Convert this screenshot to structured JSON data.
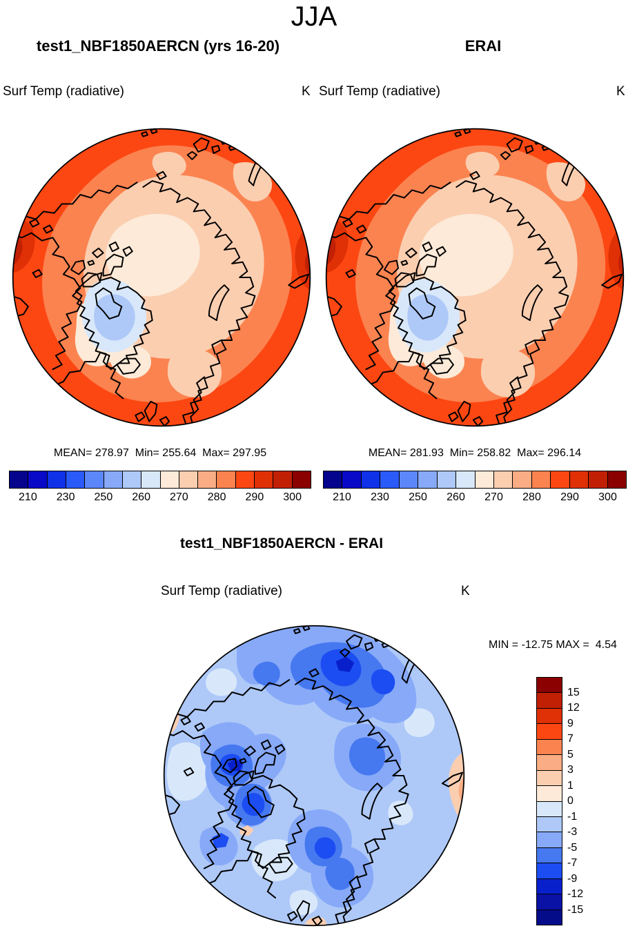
{
  "title": "JJA",
  "header": {
    "left_panel_title": "test1_NBF1850AERCN (yrs 16-20)",
    "right_panel_title": "ERAI"
  },
  "panels": {
    "top_left": {
      "variable": "Surf Temp (radiative)",
      "units": "K",
      "stats_text": "MEAN= 278.97  Min= 255.64  Max= 297.95"
    },
    "top_right": {
      "variable": "Surf Temp (radiative)",
      "units": "K",
      "stats_text": "MEAN= 281.93  Min= 258.82  Max= 296.14"
    },
    "bottom": {
      "title": "test1_NBF1850AERCN - ERAI",
      "variable": "Surf Temp (radiative)",
      "units": "K",
      "stats_text": "MIN = -12.75 MAX =  4.54"
    }
  },
  "colorbars": {
    "temperature": {
      "orientation": "horizontal",
      "colors": [
        "#04048c",
        "#0909c8",
        "#0f31e8",
        "#2a5af8",
        "#5c87fa",
        "#87a9f8",
        "#aec9f8",
        "#d8e8fa",
        "#fdead8",
        "#fbceb0",
        "#faad84",
        "#fb8350",
        "#fc4713",
        "#e03005",
        "#c22004",
        "#8b0000"
      ],
      "ticks": [
        "210",
        "230",
        "250",
        "260",
        "270",
        "280",
        "290",
        "300"
      ],
      "tick_boundaries": [
        1,
        3,
        5,
        7,
        9,
        11,
        13,
        15
      ]
    },
    "difference": {
      "orientation": "vertical",
      "colors": [
        "#8b0000",
        "#c22004",
        "#e03005",
        "#fc4713",
        "#fb8350",
        "#faad84",
        "#fbceb0",
        "#fdead8",
        "#d8e8fa",
        "#aec9f8",
        "#87a9f8",
        "#4678f0",
        "#1c4df2",
        "#0820cc",
        "#0a12a6",
        "#050c8a"
      ],
      "ticks": [
        "15",
        "12",
        "9",
        "7",
        "5",
        "3",
        "1",
        "0",
        "-1",
        "-3",
        "-5",
        "-7",
        "-9",
        "-12",
        "-15"
      ],
      "tick_boundaries": [
        1,
        2,
        3,
        4,
        5,
        6,
        7,
        8,
        9,
        10,
        11,
        12,
        13,
        14,
        15
      ]
    }
  },
  "palette": {
    "coastline": "#000000",
    "background": "#ffffff"
  },
  "chart_data": [
    {
      "type": "heatmap",
      "subtype": "north-polar-stereographic-contour-map",
      "panel": "top-left",
      "season": "JJA",
      "title": "test1_NBF1850AERCN (yrs 16-20)",
      "variable": "Surf Temp (radiative)",
      "units": "K",
      "stats": {
        "mean": 278.97,
        "min": 255.64,
        "max": 297.95
      },
      "contour_levels": [
        210,
        220,
        230,
        240,
        250,
        255,
        260,
        265,
        270,
        275,
        280,
        285,
        290,
        295,
        300
      ],
      "labeled_levels": [
        210,
        230,
        250,
        260,
        270,
        280,
        290,
        300
      ],
      "legend_position": "below",
      "notes": "Arctic ocean interior ~270-275 K (pale peach), Greenland interior 255-265 K (light blues), mid-latitude rim 280-295 K (oranges/reds)"
    },
    {
      "type": "heatmap",
      "subtype": "north-polar-stereographic-contour-map",
      "panel": "top-right",
      "season": "JJA",
      "title": "ERAI",
      "variable": "Surf Temp (radiative)",
      "units": "K",
      "stats": {
        "mean": 281.93,
        "min": 258.82,
        "max": 296.14
      },
      "contour_levels": [
        210,
        220,
        230,
        240,
        250,
        255,
        260,
        265,
        270,
        275,
        280,
        285,
        290,
        295,
        300
      ],
      "labeled_levels": [
        210,
        230,
        250,
        260,
        270,
        280,
        290,
        300
      ],
      "legend_position": "below"
    },
    {
      "type": "heatmap",
      "subtype": "north-polar-stereographic-contour-map-difference",
      "panel": "bottom",
      "season": "JJA",
      "title": "test1_NBF1850AERCN - ERAI",
      "variable": "Surf Temp (radiative)",
      "units": "K",
      "stats": {
        "min": -12.75,
        "max": 4.54
      },
      "contour_levels": [
        -15,
        -12,
        -9,
        -7,
        -5,
        -3,
        -1,
        0,
        1,
        3,
        5,
        7,
        9,
        12,
        15
      ],
      "legend_position": "right",
      "notes": "Model minus reanalysis: mostly -1 to -5 K (light/medium blues), strongest cold biases -7 to -15 K over Siberian coast, Barents region and Canadian archipelago; small warm patches 0-3 K near map rim"
    }
  ]
}
